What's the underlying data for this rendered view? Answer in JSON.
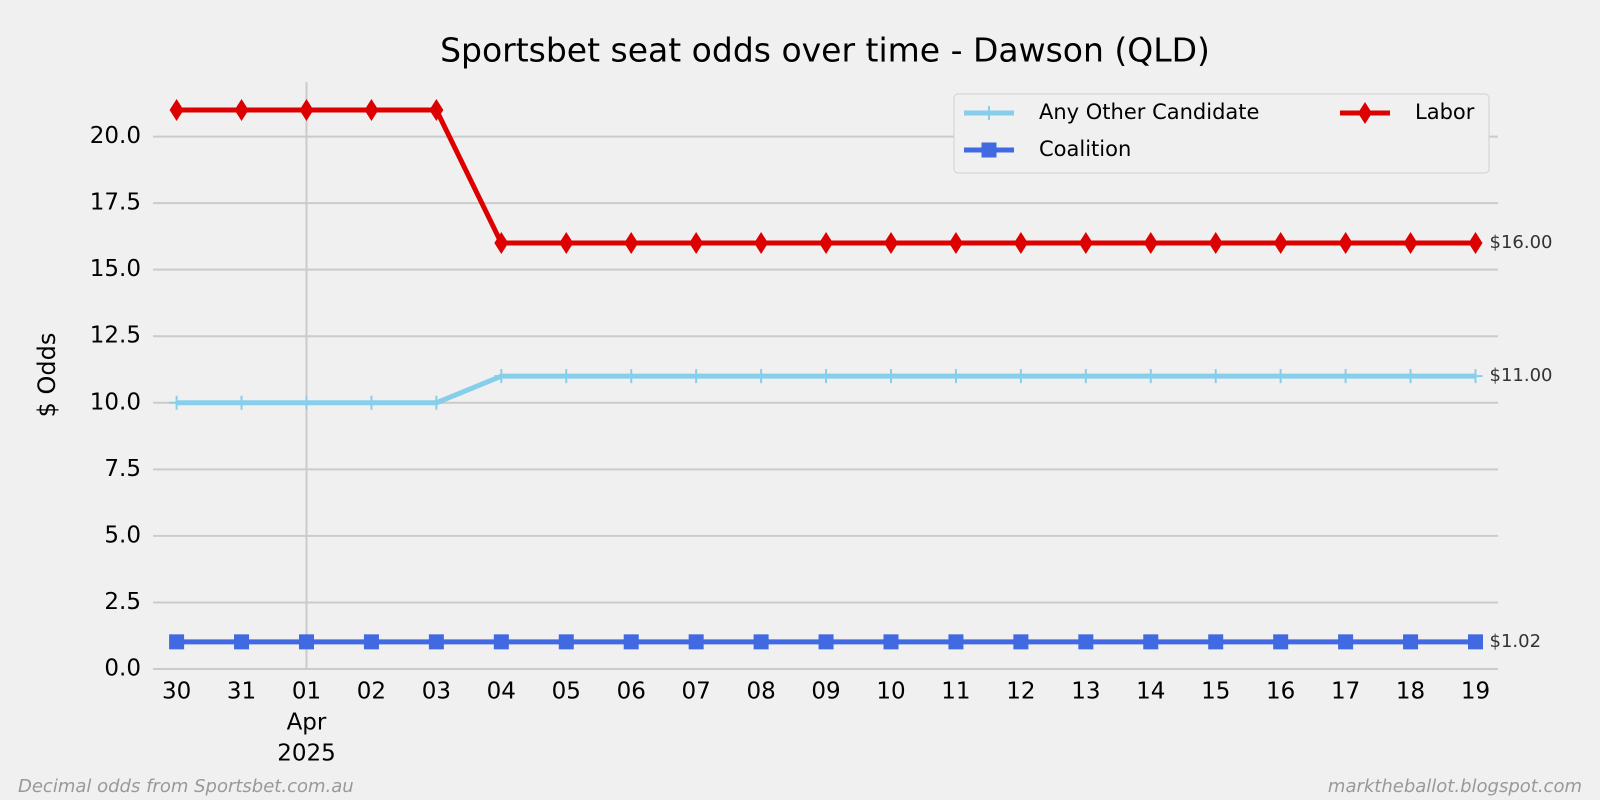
{
  "chart_data": {
    "type": "line",
    "title": "Sportsbet seat odds over time - Dawson (QLD)",
    "y_label": "$ Odds",
    "categories": [
      "30",
      "31",
      [
        "01",
        "Apr",
        "2025"
      ],
      "02",
      "03",
      "04",
      "05",
      "06",
      "07",
      "08",
      "09",
      "10",
      "11",
      "12",
      "13",
      "14",
      "15",
      "16",
      "17",
      "18",
      "19"
    ],
    "x_major_tick": 2,
    "series": [
      {
        "name": "Any Other Candidate",
        "color": "#87ceeb",
        "marker": "plus",
        "values": [
          10,
          10,
          10,
          10,
          10,
          11,
          11,
          11,
          11,
          11,
          11,
          11,
          11,
          11,
          11,
          11,
          11,
          11,
          11,
          11,
          11
        ],
        "end_label": "$11.00"
      },
      {
        "name": "Coalition",
        "color": "#4169e1",
        "marker": "square",
        "values": [
          1.02,
          1.02,
          1.02,
          1.02,
          1.02,
          1.02,
          1.02,
          1.02,
          1.02,
          1.02,
          1.02,
          1.02,
          1.02,
          1.02,
          1.02,
          1.02,
          1.02,
          1.02,
          1.02,
          1.02,
          1.02
        ],
        "end_label": "$1.02"
      },
      {
        "name": "Labor",
        "color": "#dd0000",
        "marker": "diamond",
        "values": [
          21,
          21,
          21,
          21,
          21,
          16,
          16,
          16,
          16,
          16,
          16,
          16,
          16,
          16,
          16,
          16,
          16,
          16,
          16,
          16,
          16
        ],
        "end_label": "$16.00"
      }
    ],
    "ylim": [
      0,
      22.05
    ],
    "yticks": [
      {
        "value": 0,
        "label": "0.0"
      },
      {
        "value": 2.5,
        "label": "2.5"
      },
      {
        "value": 5,
        "label": "5.0"
      },
      {
        "value": 7.5,
        "label": "7.5"
      },
      {
        "value": 10,
        "label": "10.0"
      },
      {
        "value": 12.5,
        "label": "12.5"
      },
      {
        "value": 15,
        "label": "15.0"
      },
      {
        "value": 17.5,
        "label": "17.5"
      },
      {
        "value": 20,
        "label": "20.0"
      }
    ],
    "grid": true,
    "legend_position": "upper right",
    "footer_left": "Decimal odds from Sportsbet.com.au",
    "footer_right": "marktheballot.blogspot.com"
  }
}
